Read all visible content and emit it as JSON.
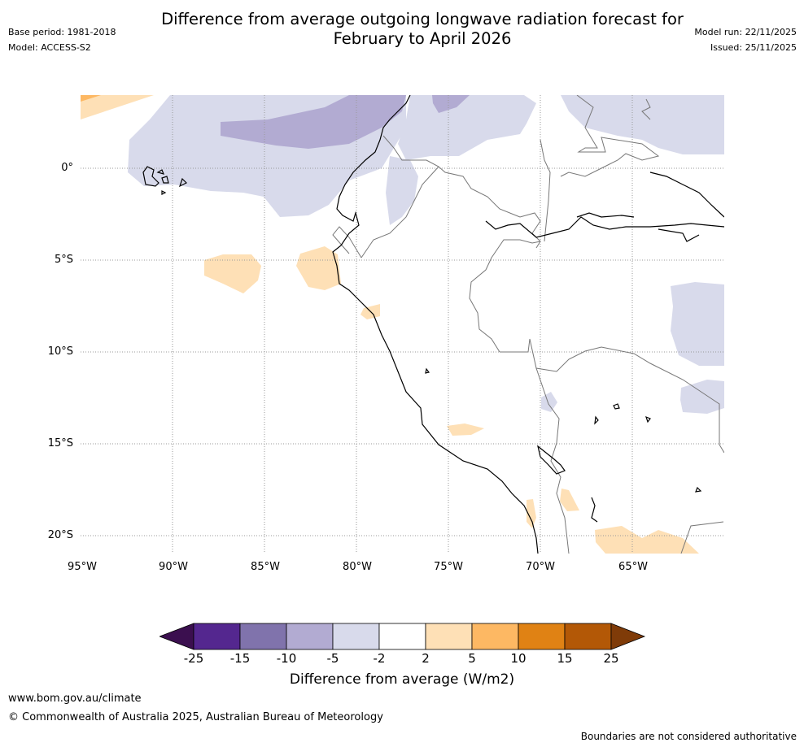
{
  "header": {
    "title_line1": "Difference from average outgoing longwave radiation forecast for",
    "title_line2": "February to April 2026",
    "base_period": "Base period: 1981-2018",
    "model": "Model: ACCESS-S2",
    "model_run": "Model run: 22/11/2025",
    "issued": "Issued: 25/11/2025"
  },
  "axes": {
    "lat_labels": [
      "0°",
      "5°S",
      "10°S",
      "15°S",
      "20°S"
    ],
    "lon_labels": [
      "95°W",
      "90°W",
      "85°W",
      "80°W",
      "75°W",
      "70°W",
      "65°W"
    ]
  },
  "colorbar": {
    "ticks": [
      "-25",
      "-15",
      "-10",
      "-5",
      "-2",
      "2",
      "5",
      "10",
      "15",
      "25"
    ],
    "label": "Difference from average (W/m2)",
    "colors": [
      "#3b0f4f",
      "#54278f",
      "#8073ac",
      "#b2abd2",
      "#d8daeb",
      "#ffffff",
      "#fee0b6",
      "#fdb863",
      "#e08214",
      "#b35806",
      "#7f3b08"
    ]
  },
  "footer": {
    "url": "www.bom.gov.au/climate",
    "copyright": "© Commonwealth of Australia 2025, Australian Bureau of Meteorology",
    "disclaimer": "Boundaries are not considered authoritative"
  }
}
